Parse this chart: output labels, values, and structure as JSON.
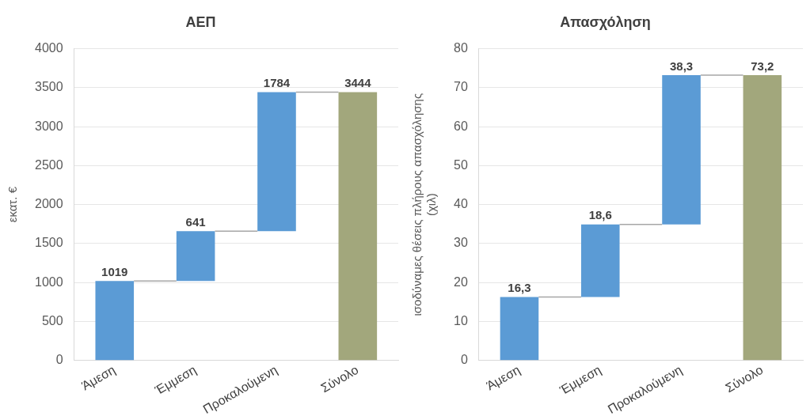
{
  "chart_data": [
    {
      "type": "bar",
      "title": "ΑΕΠ",
      "ylabel": "εκατ. €",
      "categories": [
        "Άμεση",
        "Έμμεση",
        "Προκαλούμενη",
        "Σύνολο"
      ],
      "values": [
        1019,
        641,
        1784,
        3444
      ],
      "base": [
        0,
        1019,
        1660,
        0
      ],
      "colors": [
        "#5b9bd5",
        "#5b9bd5",
        "#5b9bd5",
        "#a2a77c"
      ],
      "ylim": [
        0,
        4000
      ],
      "yticks": [
        0,
        500,
        1000,
        1500,
        2000,
        2500,
        3000,
        3500,
        4000
      ],
      "grid": "y",
      "data_labels": true
    },
    {
      "type": "bar",
      "title": "Απασχόληση",
      "ylabel": "ισοδύναμες θέσεις πλήρους απασχόλησης (χιλ)",
      "categories": [
        "Άμεση",
        "Έμμεση",
        "Προκαλούμενη",
        "Σύνολο"
      ],
      "values": [
        16.3,
        18.6,
        38.3,
        73.2
      ],
      "base": [
        0,
        16.3,
        34.9,
        0
      ],
      "value_labels": [
        "16,3",
        "18,6",
        "38,3",
        "73,2"
      ],
      "colors": [
        "#5b9bd5",
        "#5b9bd5",
        "#5b9bd5",
        "#a2a77c"
      ],
      "ylim": [
        0,
        80
      ],
      "yticks": [
        0,
        10,
        20,
        30,
        40,
        50,
        60,
        70,
        80
      ],
      "grid": "y"
    }
  ]
}
